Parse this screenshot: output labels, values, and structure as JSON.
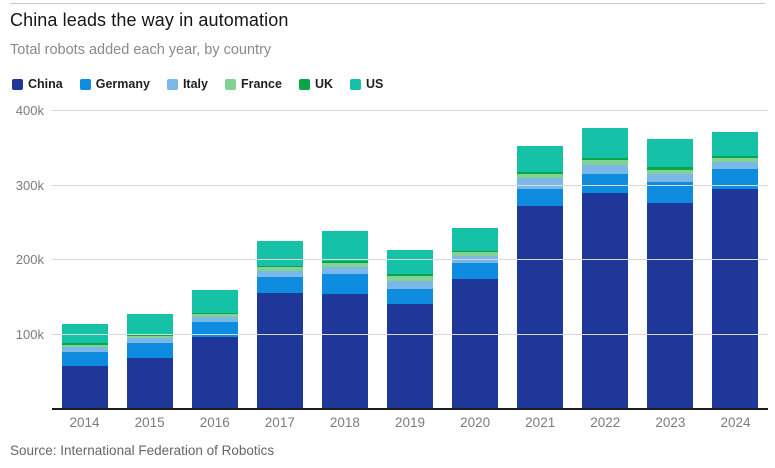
{
  "header": {
    "title": "China leads the way in automation",
    "subtitle": "Total robots added each year, by country"
  },
  "source": "Source: International Federation of Robotics",
  "chart_data": {
    "type": "bar",
    "stacked": true,
    "title": "China leads the way in automation",
    "subtitle": "Total robots added each year, by country",
    "unit": "robots added per year, thousands",
    "categories": [
      "2014",
      "2015",
      "2016",
      "2017",
      "2018",
      "2019",
      "2020",
      "2021",
      "2022",
      "2023",
      "2024"
    ],
    "series": [
      {
        "name": "China",
        "color": "#1f3798",
        "values_thousands": [
          57.1,
          68.6,
          96.5,
          156.2,
          154.0,
          140.5,
          174.0,
          272.0,
          290.3,
          276.3,
          295.0
        ]
      },
      {
        "name": "Germany",
        "color": "#0e8ce0",
        "values_thousands": [
          20.1,
          20.1,
          20.0,
          21.4,
          26.7,
          20.5,
          22.3,
          23.8,
          25.6,
          28.4,
          27.0
        ]
      },
      {
        "name": "Italy",
        "color": "#7ab8e8",
        "values_thousands": [
          6.2,
          6.7,
          6.5,
          7.7,
          9.8,
          11.1,
          8.5,
          14.1,
          11.5,
          10.4,
          9.5
        ]
      },
      {
        "name": "France",
        "color": "#82d295",
        "values_thousands": [
          2.9,
          3.0,
          4.2,
          4.9,
          5.8,
          6.7,
          5.4,
          5.9,
          7.4,
          6.4,
          5.5
        ]
      },
      {
        "name": "UK",
        "color": "#0aa64a",
        "values_thousands": [
          2.1,
          1.6,
          1.8,
          2.3,
          2.3,
          2.0,
          2.2,
          2.1,
          2.5,
          3.8,
          2.7
        ]
      },
      {
        "name": "US",
        "color": "#16c2a7",
        "values_thousands": [
          26.2,
          27.5,
          31.4,
          33.2,
          40.4,
          33.3,
          30.8,
          35.0,
          39.6,
          37.6,
          32.5
        ]
      }
    ],
    "xlabel": "",
    "ylabel": "",
    "ylim_thousands": [
      0,
      400
    ],
    "yticks_thousands": [
      100,
      200,
      300,
      400
    ],
    "ytick_labels": [
      "100k",
      "200k",
      "300k",
      "400k"
    ],
    "grid": "horizontal",
    "legend_position": "top-left"
  }
}
